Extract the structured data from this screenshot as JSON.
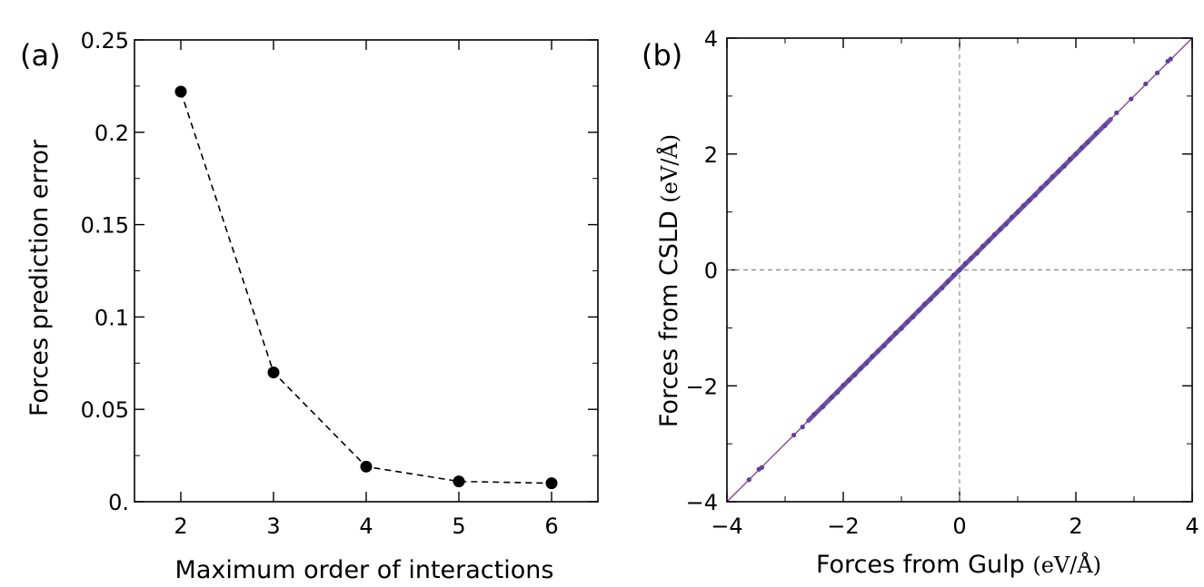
{
  "chart_data": [
    {
      "type": "line",
      "panel_label": "(a)",
      "xlabel": "Maximum order of interactions",
      "ylabel": "Forces prediction error",
      "x": [
        2,
        3,
        4,
        5,
        6
      ],
      "y": [
        0.222,
        0.07,
        0.019,
        0.011,
        0.01
      ],
      "xlim": [
        1.5,
        6.5
      ],
      "ylim": [
        0,
        0.25
      ],
      "xticks": [
        2,
        3,
        4,
        5,
        6
      ],
      "xtick_labels": [
        "2",
        "3",
        "4",
        "5",
        "6"
      ],
      "yticks": [
        0,
        0.05,
        0.1,
        0.15,
        0.2,
        0.25
      ],
      "ytick_labels": [
        "0.",
        "0.05",
        "0.1",
        "0.15",
        "0.2",
        "0.25"
      ],
      "line_style": "dashed",
      "marker": "circle",
      "color": "#000000"
    },
    {
      "type": "scatter",
      "panel_label": "(b)",
      "xlabel": "Forces from Gulp",
      "xlabel_unit": "(eV/Å)",
      "ylabel": "Forces from CSLD",
      "ylabel_unit": "(eV/Å)",
      "xlim": [
        -4,
        4
      ],
      "ylim": [
        -4,
        4
      ],
      "xticks": [
        -4,
        -2,
        0,
        2,
        4
      ],
      "xtick_labels": [
        "−4",
        "−2",
        "0",
        "2",
        "4"
      ],
      "yticks": [
        -4,
        -2,
        0,
        2,
        4
      ],
      "ytick_labels": [
        "−4",
        "−2",
        "0",
        "2",
        "4"
      ],
      "reference_line": "y = x",
      "reference_line_color": "#8b3a8b",
      "zero_lines": "dashed at x=0 and y=0",
      "point_color": "#4a3fa0",
      "points": [
        [
          -3.62,
          -3.62
        ],
        [
          -3.45,
          -3.44
        ],
        [
          -3.4,
          -3.41
        ],
        [
          -2.85,
          -2.85
        ],
        [
          -2.7,
          -2.71
        ],
        [
          -2.5,
          -2.49
        ],
        [
          -2.35,
          -2.36
        ],
        [
          -2.2,
          -2.2
        ],
        [
          -2.1,
          -2.11
        ],
        [
          -2.0,
          -1.99
        ],
        [
          -1.9,
          -1.9
        ],
        [
          -1.8,
          -1.81
        ],
        [
          -1.7,
          -1.7
        ],
        [
          -1.6,
          -1.61
        ],
        [
          -1.5,
          -1.49
        ],
        [
          -1.4,
          -1.4
        ],
        [
          -1.3,
          -1.31
        ],
        [
          -1.2,
          -1.2
        ],
        [
          -1.1,
          -1.09
        ],
        [
          -1.0,
          -1.01
        ],
        [
          -0.9,
          -0.9
        ],
        [
          -0.8,
          -0.81
        ],
        [
          -0.7,
          -0.7
        ],
        [
          -0.6,
          -0.59
        ],
        [
          -0.5,
          -0.51
        ],
        [
          -0.4,
          -0.4
        ],
        [
          -0.3,
          -0.31
        ],
        [
          -0.2,
          -0.2
        ],
        [
          -0.1,
          -0.09
        ],
        [
          0.0,
          0.0
        ],
        [
          0.1,
          0.11
        ],
        [
          0.2,
          0.2
        ],
        [
          0.3,
          0.29
        ],
        [
          0.4,
          0.41
        ],
        [
          0.5,
          0.5
        ],
        [
          0.6,
          0.61
        ],
        [
          0.7,
          0.7
        ],
        [
          0.8,
          0.79
        ],
        [
          0.9,
          0.91
        ],
        [
          1.0,
          1.0
        ],
        [
          1.1,
          1.11
        ],
        [
          1.2,
          1.2
        ],
        [
          1.3,
          1.29
        ],
        [
          1.4,
          1.41
        ],
        [
          1.5,
          1.5
        ],
        [
          1.6,
          1.61
        ],
        [
          1.7,
          1.7
        ],
        [
          1.8,
          1.79
        ],
        [
          1.9,
          1.91
        ],
        [
          2.0,
          2.0
        ],
        [
          2.1,
          2.11
        ],
        [
          2.2,
          2.2
        ],
        [
          2.35,
          2.36
        ],
        [
          2.5,
          2.49
        ],
        [
          2.7,
          2.71
        ],
        [
          2.95,
          2.95
        ],
        [
          3.2,
          3.21
        ],
        [
          3.4,
          3.4
        ],
        [
          3.58,
          3.6
        ],
        [
          3.63,
          3.64
        ]
      ]
    }
  ]
}
